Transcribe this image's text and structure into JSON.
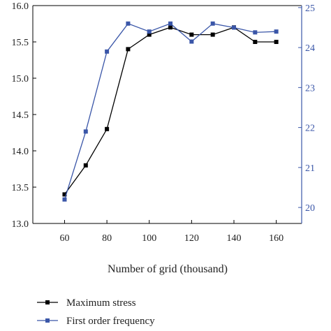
{
  "chart_data": {
    "type": "line",
    "title": "",
    "xlabel": "Number of grid (thousand)",
    "ylabel_left": "",
    "ylabel_right": "",
    "x": [
      60,
      70,
      80,
      90,
      100,
      110,
      120,
      130,
      140,
      150,
      160
    ],
    "x_ticks": [
      "60",
      "80",
      "100",
      "120",
      "140",
      "160"
    ],
    "x_tick_values": [
      60,
      80,
      100,
      120,
      140,
      160
    ],
    "xlim": [
      45,
      172
    ],
    "y_left_ticks": [
      "13.0",
      "13.5",
      "14.0",
      "14.5",
      "15.0",
      "15.5",
      "16.0"
    ],
    "y_left_tick_values": [
      13.0,
      13.5,
      14.0,
      14.5,
      15.0,
      15.5,
      16.0
    ],
    "ylim_left": [
      13.0,
      16.0
    ],
    "y_right_ticks": [
      "20",
      "21",
      "22",
      "23",
      "24",
      "25"
    ],
    "y_right_tick_values": [
      20,
      21,
      22,
      23,
      24,
      25
    ],
    "ylim_right": [
      19.6,
      25.05
    ],
    "grid": false,
    "legend_position": "bottom",
    "series": [
      {
        "name": "Maximum stress",
        "axis": "left",
        "color": "#000000",
        "marker": "square",
        "values": [
          13.4,
          13.8,
          14.3,
          15.4,
          15.6,
          15.7,
          15.6,
          15.6,
          15.7,
          15.5,
          15.5
        ]
      },
      {
        "name": "First order frequency",
        "axis": "right",
        "color": "#3a56a8",
        "marker": "square",
        "values": [
          20.2,
          21.9,
          23.9,
          24.6,
          24.4,
          24.6,
          24.15,
          24.6,
          24.5,
          24.38,
          24.4
        ]
      }
    ]
  },
  "colors": {
    "left_axis": "#000000",
    "right_axis": "#3a56a8"
  }
}
